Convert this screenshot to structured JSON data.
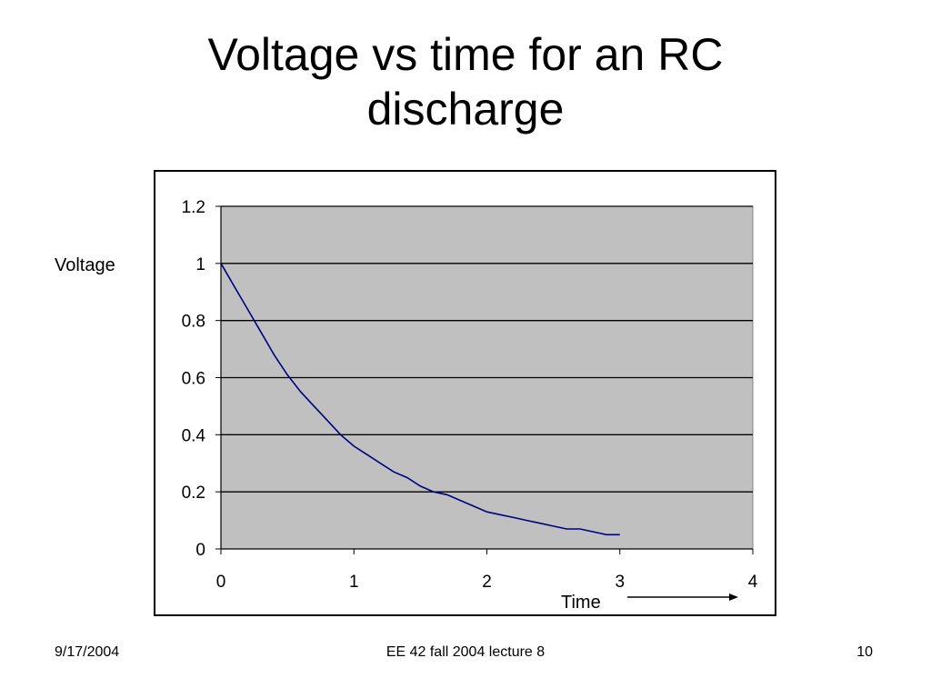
{
  "slide": {
    "title_lines": [
      "Voltage vs time for an RC",
      "discharge"
    ]
  },
  "footer": {
    "date": "9/17/2004",
    "center": "EE 42 fall 2004 lecture 8",
    "page": "10"
  },
  "chart_data": {
    "type": "line",
    "title": "",
    "xlabel": "Time",
    "ylabel": "Voltage",
    "xlim": [
      0,
      4
    ],
    "ylim": [
      0,
      1.2
    ],
    "x_ticks": [
      "0",
      "1",
      "2",
      "3",
      "4"
    ],
    "y_ticks": [
      "0",
      "0.2",
      "0.4",
      "0.6",
      "0.8",
      "1",
      "1.2"
    ],
    "grid": "horizontal",
    "legend": "none",
    "plot_background": "#c0c0c0",
    "line_color": "#000080",
    "series": [
      {
        "x": [
          0,
          0.1,
          0.2,
          0.3,
          0.4,
          0.5,
          0.6,
          0.7,
          0.8,
          0.9,
          1.0,
          1.1,
          1.2,
          1.3,
          1.4,
          1.5,
          1.6,
          1.7,
          1.8,
          1.9,
          2.0,
          2.1,
          2.2,
          2.3,
          2.4,
          2.5,
          2.6,
          2.7,
          2.8,
          2.9,
          3.0
        ],
        "y": [
          1.0,
          0.92,
          0.84,
          0.76,
          0.68,
          0.61,
          0.55,
          0.5,
          0.45,
          0.4,
          0.36,
          0.33,
          0.3,
          0.27,
          0.25,
          0.22,
          0.2,
          0.19,
          0.17,
          0.15,
          0.13,
          0.12,
          0.11,
          0.1,
          0.09,
          0.08,
          0.07,
          0.07,
          0.06,
          0.05,
          0.05
        ]
      }
    ]
  }
}
